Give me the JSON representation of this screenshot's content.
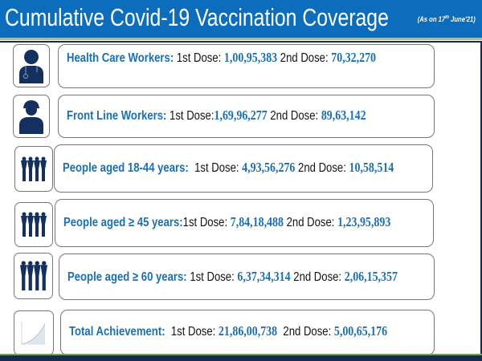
{
  "header": {
    "title": "Cumulative Covid-19 Vaccination Coverage",
    "as_on_prefix": "(As on 17",
    "as_on_sup": "th",
    "as_on_suffix": " June'21)"
  },
  "colors": {
    "header_blue": "#0b6dbb",
    "label_blue": "#1a6fb5",
    "icon_navy": "#13305e"
  },
  "rows": [
    {
      "icon": "health-worker-icon",
      "label": "Health Care Workers:",
      "dose1_label": "1st Dose:",
      "dose1": "1,00,95,383",
      "dose2_label": "2nd Dose:",
      "dose2": "70,32,270"
    },
    {
      "icon": "front-line-worker-icon",
      "label": "Front Line Workers:",
      "dose1_label": "1st Dose:",
      "dose1": "1,69,96,277",
      "dose2_label": "2nd Dose:",
      "dose2": "89,63,142"
    },
    {
      "icon": "people-group-icon",
      "label": "People aged 18-44 years:",
      "dose1_label": "1st Dose:",
      "dose1": "4,93,56,276",
      "dose2_label": "2nd Dose:",
      "dose2": "10,58,514"
    },
    {
      "icon": "people-group-icon",
      "label": "People aged ≥ 45 years:",
      "dose1_label": "1st Dose:",
      "dose1": "7,84,18,488",
      "dose2_label": "2nd Dose:",
      "dose2": "1,23,95,893"
    },
    {
      "icon": "people-group-icon",
      "label": "People aged ≥ 60 years:",
      "dose1_label": "1st Dose:",
      "dose1": "6,37,34,314",
      "dose2_label": "2nd Dose:",
      "dose2": "2,06,15,357"
    },
    {
      "icon": "growth-chart-icon",
      "label": "Total Achievement:",
      "dose1_label": "1st Dose:",
      "dose1": "21,86,00,738",
      "dose2_label": "2nd Dose:",
      "dose2": "5,00,65,176"
    }
  ]
}
